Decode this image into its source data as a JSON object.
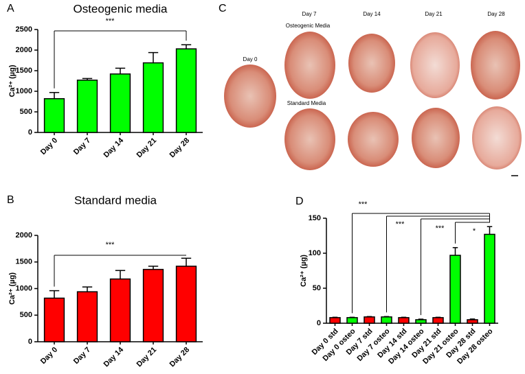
{
  "chart_data": [
    {
      "type": "bar",
      "panel": "A",
      "title": "Osteogenic media",
      "y_label": "Ca²⁺ (µg)",
      "categories": [
        "Day 0",
        "Day 7",
        "Day 14",
        "Day 21",
        "Day 28"
      ],
      "values": [
        820,
        1270,
        1420,
        1690,
        2030
      ],
      "errors": [
        150,
        40,
        140,
        250,
        100
      ],
      "color": "#00ff00",
      "ylim": [
        0,
        2500
      ],
      "yticks": [
        0,
        500,
        1000,
        1500,
        2000,
        2500
      ],
      "annotations": [
        "***"
      ]
    },
    {
      "type": "bar",
      "panel": "B",
      "title": "Standard media",
      "y_label": "Ca²⁺ (µg)",
      "categories": [
        "Day 0",
        "Day 7",
        "Day 14",
        "Day 21",
        "Day 28"
      ],
      "values": [
        820,
        940,
        1180,
        1360,
        1420
      ],
      "errors": [
        140,
        90,
        160,
        60,
        150
      ],
      "color": "#ff0000",
      "ylim": [
        0,
        2000
      ],
      "yticks": [
        0,
        500,
        1000,
        1500,
        2000
      ],
      "annotations": [
        "***"
      ]
    },
    {
      "type": "bar",
      "panel": "D",
      "y_label": "Ca²⁺ (µg)",
      "categories": [
        "Day 0 std",
        "Day 0 osteo",
        "Day 7 std",
        "Day 7 osteo",
        "Day 14 std",
        "Day 14 osteo",
        "Day 21 std",
        "Day 21 osteo",
        "Day 28 std",
        "Day 28 osteo"
      ],
      "values": [
        8,
        8,
        9,
        9,
        8,
        5,
        8,
        97,
        5,
        127
      ],
      "errors": [
        0.5,
        0.5,
        0.5,
        0.5,
        0.5,
        0.8,
        0.5,
        11,
        1,
        11
      ],
      "colors": [
        "#ff0000",
        "#00ff00",
        "#ff0000",
        "#00ff00",
        "#ff0000",
        "#00ff00",
        "#ff0000",
        "#00ff00",
        "#ff0000",
        "#00ff00"
      ],
      "ylim": [
        0,
        150
      ],
      "yticks": [
        0,
        50,
        100,
        150
      ],
      "annotations": [
        "***",
        "***",
        "***",
        "*"
      ]
    }
  ],
  "panel_c": {
    "label": "C",
    "day0": "Day 0",
    "columns": [
      "Day 7",
      "Day 14",
      "Day 21",
      "Day 28"
    ],
    "rows": [
      "Osteogenic Media",
      "Standard Media"
    ]
  }
}
